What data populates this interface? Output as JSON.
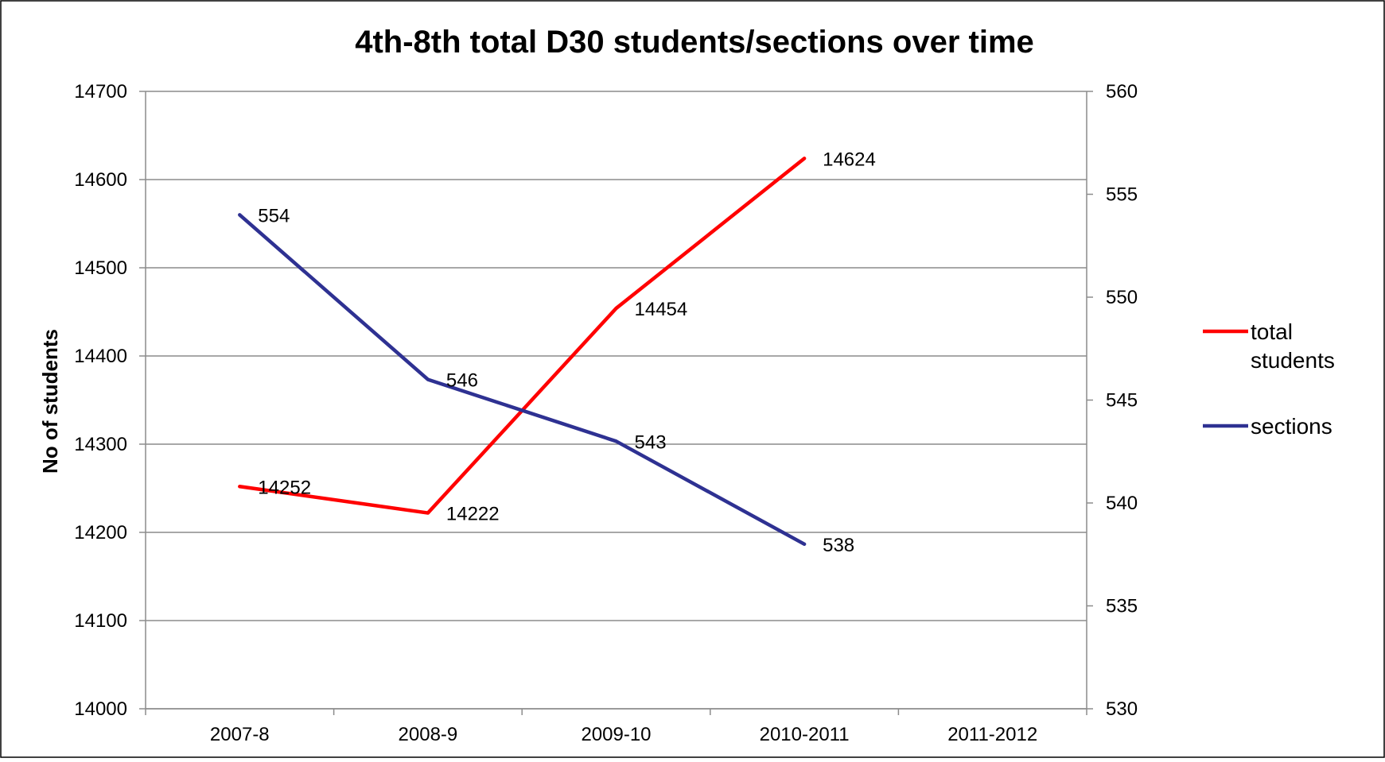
{
  "chart_data": {
    "type": "line",
    "title": "4th-8th total D30 students/sections over time",
    "ylabel": "No of students",
    "y2label": "",
    "categories": [
      "2007-8",
      "2008-9",
      "2009-10",
      "2010-2011",
      "2011-2012"
    ],
    "ylim": [
      14000,
      14700
    ],
    "yticks": [
      14000,
      14100,
      14200,
      14300,
      14400,
      14500,
      14600,
      14700
    ],
    "y2lim": [
      530,
      560
    ],
    "y2ticks": [
      530,
      535,
      540,
      545,
      550,
      555,
      560
    ],
    "grid": true,
    "legend_position": "right",
    "series": [
      {
        "name": "total students",
        "axis": "left",
        "color": "#ff0000",
        "values": [
          14252,
          14222,
          14454,
          14624,
          null
        ]
      },
      {
        "name": "sections",
        "axis": "right",
        "color": "#2e3192",
        "values": [
          554,
          546,
          543,
          538,
          null
        ]
      }
    ]
  }
}
